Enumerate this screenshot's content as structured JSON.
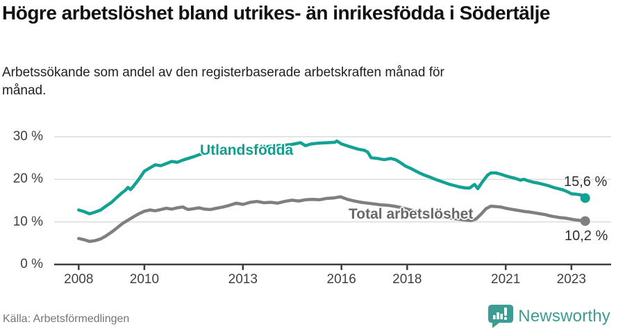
{
  "chart_data": {
    "type": "line",
    "title": "Högre arbetslöshet bland utrikes- än inrikesfödda i Södertälje",
    "subtitle": "Arbetssökande som andel av den registerbaserade arbetskraften månad för månad.",
    "source": "Källa: Arbetsförmedlingen",
    "grid": true,
    "legend_position": "inline-labels",
    "xlim": [
      2007.25,
      2024.2
    ],
    "ylim": [
      0,
      35
    ],
    "y_ticks": [
      {
        "value": 0,
        "label": "0 %"
      },
      {
        "value": 10,
        "label": "10 %"
      },
      {
        "value": 20,
        "label": "20 %"
      },
      {
        "value": 30,
        "label": "30 %"
      }
    ],
    "x_ticks": [
      {
        "year": 2008,
        "label": "2008"
      },
      {
        "year": 2010,
        "label": "2010"
      },
      {
        "year": 2013,
        "label": "2013"
      },
      {
        "year": 2016,
        "label": "2016"
      },
      {
        "year": 2018,
        "label": "2018"
      },
      {
        "year": 2021,
        "label": "2021"
      },
      {
        "year": 2023,
        "label": "2023"
      }
    ],
    "series": [
      {
        "name": "Utlandsfödda",
        "color": "#12a192",
        "label_color": "#0da091",
        "end_label": "15,6 %",
        "end_value": 15.6,
        "points": [
          [
            2008.0,
            12.8
          ],
          [
            2008.17,
            12.4
          ],
          [
            2008.33,
            11.9
          ],
          [
            2008.5,
            12.3
          ],
          [
            2008.67,
            12.8
          ],
          [
            2008.83,
            13.7
          ],
          [
            2009.0,
            14.6
          ],
          [
            2009.17,
            15.8
          ],
          [
            2009.33,
            16.9
          ],
          [
            2009.42,
            17.4
          ],
          [
            2009.5,
            18.1
          ],
          [
            2009.58,
            17.6
          ],
          [
            2009.67,
            18.4
          ],
          [
            2009.83,
            20.0
          ],
          [
            2009.92,
            21.0
          ],
          [
            2010.0,
            21.9
          ],
          [
            2010.17,
            22.7
          ],
          [
            2010.33,
            23.4
          ],
          [
            2010.5,
            23.2
          ],
          [
            2010.67,
            23.7
          ],
          [
            2010.83,
            24.2
          ],
          [
            2011.0,
            24.0
          ],
          [
            2011.17,
            24.5
          ],
          [
            2011.33,
            24.9
          ],
          [
            2011.5,
            25.3
          ],
          [
            2011.67,
            25.8
          ],
          [
            2011.83,
            26.1
          ],
          [
            2012.0,
            26.3
          ],
          [
            2012.25,
            26.5
          ],
          [
            2012.5,
            26.7
          ],
          [
            2012.75,
            26.9
          ],
          [
            2013.0,
            27.1
          ],
          [
            2013.25,
            27.3
          ],
          [
            2013.5,
            27.5
          ],
          [
            2013.75,
            27.7
          ],
          [
            2014.0,
            27.9
          ],
          [
            2014.25,
            28.0
          ],
          [
            2014.5,
            28.2
          ],
          [
            2014.76,
            28.6
          ],
          [
            2014.9,
            27.9
          ],
          [
            2015.08,
            28.3
          ],
          [
            2015.3,
            28.5
          ],
          [
            2015.55,
            28.6
          ],
          [
            2015.8,
            28.7
          ],
          [
            2015.86,
            29.0
          ],
          [
            2016.0,
            28.3
          ],
          [
            2016.2,
            27.8
          ],
          [
            2016.5,
            27.1
          ],
          [
            2016.7,
            26.8
          ],
          [
            2016.8,
            26.4
          ],
          [
            2016.9,
            25.1
          ],
          [
            2017.1,
            24.9
          ],
          [
            2017.3,
            24.6
          ],
          [
            2017.5,
            24.9
          ],
          [
            2017.65,
            24.6
          ],
          [
            2017.8,
            23.9
          ],
          [
            2017.95,
            23.1
          ],
          [
            2018.1,
            22.6
          ],
          [
            2018.25,
            22.0
          ],
          [
            2018.4,
            21.4
          ],
          [
            2018.55,
            20.9
          ],
          [
            2018.7,
            20.5
          ],
          [
            2018.85,
            20.0
          ],
          [
            2019.0,
            19.6
          ],
          [
            2019.15,
            19.2
          ],
          [
            2019.3,
            18.8
          ],
          [
            2019.45,
            18.5
          ],
          [
            2019.6,
            18.2
          ],
          [
            2019.75,
            18.0
          ],
          [
            2019.9,
            17.95
          ],
          [
            2020.05,
            18.8
          ],
          [
            2020.15,
            17.8
          ],
          [
            2020.3,
            19.5
          ],
          [
            2020.45,
            21.0
          ],
          [
            2020.55,
            21.5
          ],
          [
            2020.7,
            21.5
          ],
          [
            2020.85,
            21.2
          ],
          [
            2021.0,
            20.8
          ],
          [
            2021.15,
            20.5
          ],
          [
            2021.3,
            20.2
          ],
          [
            2021.45,
            19.8
          ],
          [
            2021.55,
            20.0
          ],
          [
            2021.7,
            19.6
          ],
          [
            2021.85,
            19.3
          ],
          [
            2022.0,
            19.1
          ],
          [
            2022.15,
            18.8
          ],
          [
            2022.3,
            18.5
          ],
          [
            2022.45,
            18.1
          ],
          [
            2022.6,
            17.8
          ],
          [
            2022.75,
            17.5
          ],
          [
            2022.9,
            17.0
          ],
          [
            2023.0,
            16.6
          ],
          [
            2023.15,
            16.5
          ],
          [
            2023.3,
            16.3
          ],
          [
            2023.35,
            15.9
          ],
          [
            2023.42,
            15.6
          ]
        ]
      },
      {
        "name": "Total arbetslöshet",
        "color": "#7f7f7f",
        "label_color": "#686868",
        "end_label": "10,2 %",
        "end_value": 10.2,
        "points": [
          [
            2008.0,
            6.1
          ],
          [
            2008.17,
            5.8
          ],
          [
            2008.33,
            5.4
          ],
          [
            2008.5,
            5.6
          ],
          [
            2008.67,
            6.0
          ],
          [
            2008.83,
            6.7
          ],
          [
            2009.0,
            7.6
          ],
          [
            2009.17,
            8.6
          ],
          [
            2009.33,
            9.6
          ],
          [
            2009.5,
            10.4
          ],
          [
            2009.67,
            11.2
          ],
          [
            2009.83,
            11.9
          ],
          [
            2010.0,
            12.5
          ],
          [
            2010.17,
            12.8
          ],
          [
            2010.33,
            12.6
          ],
          [
            2010.5,
            12.9
          ],
          [
            2010.67,
            13.2
          ],
          [
            2010.83,
            13.0
          ],
          [
            2011.0,
            13.3
          ],
          [
            2011.17,
            13.5
          ],
          [
            2011.33,
            12.9
          ],
          [
            2011.5,
            13.1
          ],
          [
            2011.67,
            13.3
          ],
          [
            2011.83,
            13.0
          ],
          [
            2012.0,
            12.9
          ],
          [
            2012.2,
            13.2
          ],
          [
            2012.4,
            13.5
          ],
          [
            2012.6,
            13.9
          ],
          [
            2012.8,
            14.4
          ],
          [
            2013.0,
            14.1
          ],
          [
            2013.22,
            14.6
          ],
          [
            2013.43,
            14.8
          ],
          [
            2013.64,
            14.5
          ],
          [
            2013.85,
            14.6
          ],
          [
            2014.06,
            14.4
          ],
          [
            2014.27,
            14.8
          ],
          [
            2014.49,
            15.1
          ],
          [
            2014.7,
            14.9
          ],
          [
            2014.91,
            15.2
          ],
          [
            2015.12,
            15.3
          ],
          [
            2015.33,
            15.2
          ],
          [
            2015.54,
            15.5
          ],
          [
            2015.75,
            15.6
          ],
          [
            2015.97,
            15.9
          ],
          [
            2016.18,
            15.3
          ],
          [
            2016.39,
            14.9
          ],
          [
            2016.6,
            14.6
          ],
          [
            2016.8,
            14.4
          ],
          [
            2017.0,
            14.2
          ],
          [
            2017.2,
            14.0
          ],
          [
            2017.4,
            13.9
          ],
          [
            2017.6,
            13.7
          ],
          [
            2017.8,
            13.4
          ],
          [
            2018.0,
            13.0
          ],
          [
            2018.2,
            12.6
          ],
          [
            2018.4,
            12.2
          ],
          [
            2018.6,
            11.9
          ],
          [
            2018.8,
            11.6
          ],
          [
            2019.0,
            11.3
          ],
          [
            2019.2,
            11.0
          ],
          [
            2019.4,
            10.8
          ],
          [
            2019.6,
            10.6
          ],
          [
            2019.8,
            10.4
          ],
          [
            2019.95,
            10.3
          ],
          [
            2020.1,
            10.7
          ],
          [
            2020.25,
            11.8
          ],
          [
            2020.4,
            13.1
          ],
          [
            2020.55,
            13.7
          ],
          [
            2020.7,
            13.6
          ],
          [
            2020.85,
            13.5
          ],
          [
            2021.0,
            13.2
          ],
          [
            2021.15,
            13.0
          ],
          [
            2021.3,
            12.8
          ],
          [
            2021.45,
            12.6
          ],
          [
            2021.6,
            12.4
          ],
          [
            2021.75,
            12.3
          ],
          [
            2021.9,
            12.1
          ],
          [
            2022.05,
            11.9
          ],
          [
            2022.2,
            11.7
          ],
          [
            2022.35,
            11.4
          ],
          [
            2022.5,
            11.2
          ],
          [
            2022.65,
            11.0
          ],
          [
            2022.8,
            10.9
          ],
          [
            2022.95,
            10.7
          ],
          [
            2023.1,
            10.5
          ],
          [
            2023.25,
            10.35
          ],
          [
            2023.42,
            10.2
          ]
        ]
      }
    ],
    "colors": {
      "grid": "#dcdcdc",
      "axis": "#3d3d3d",
      "accent_teal": "#12a192",
      "series_gray": "#7f7f7f"
    }
  },
  "footer": {
    "logo_text": "Newsworthy",
    "logo_color": "#3b9c93"
  }
}
